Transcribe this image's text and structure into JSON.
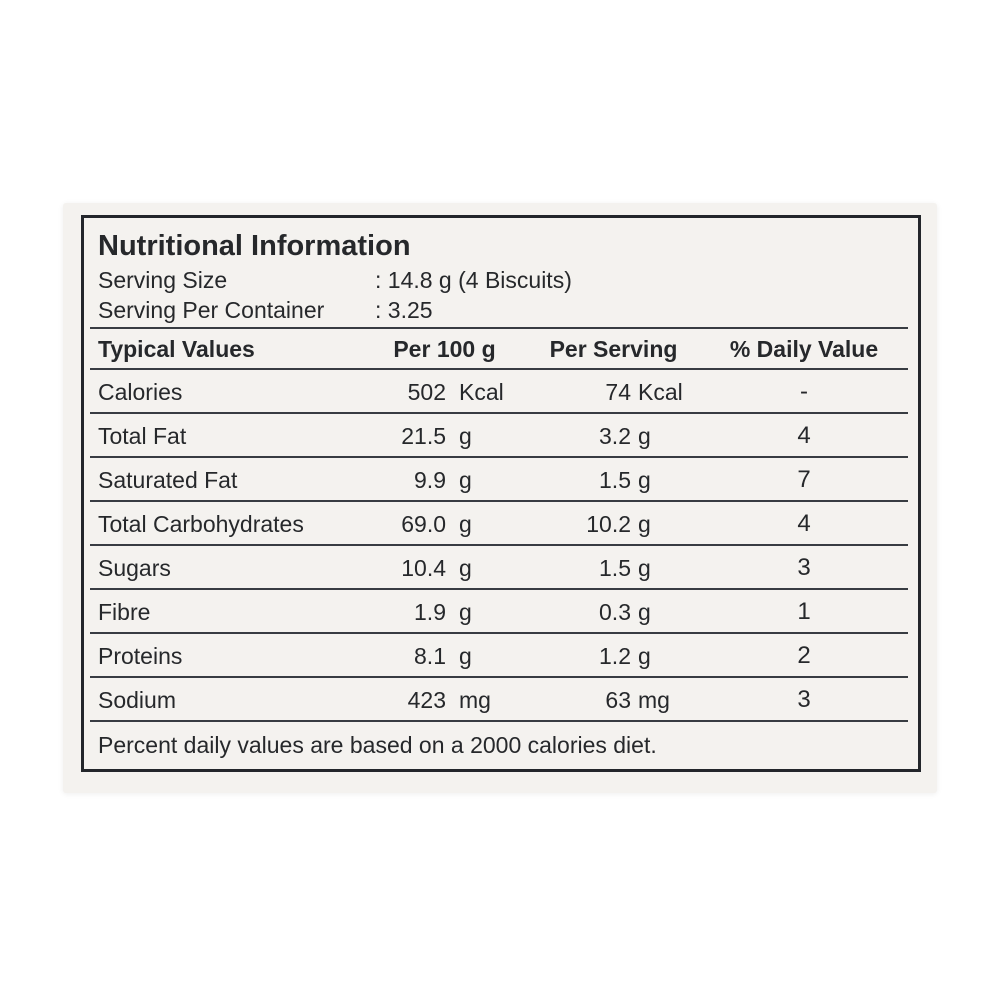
{
  "page": {
    "background": "#ffffff",
    "card_background": "#f4f2ef",
    "border_color": "#23262b",
    "rule_color": "#383c42",
    "text_color": "#26282b"
  },
  "label": {
    "title": "Nutritional Information",
    "serving_rows": [
      {
        "label": "Serving Size",
        "value": ": 14.8 g (4 Biscuits)"
      },
      {
        "label": "Serving Per Container",
        "value": ": 3.25"
      }
    ],
    "columns": [
      "Typical Values",
      "Per 100 g",
      "Per Serving",
      "% Daily Value"
    ],
    "rows": [
      {
        "name": "Calories",
        "per100_num": "502",
        "per100_unit": "Kcal",
        "serving_num": "74",
        "serving_unit": "Kcal",
        "daily": "-"
      },
      {
        "name": "Total Fat",
        "per100_num": "21.5",
        "per100_unit": "g",
        "serving_num": "3.2",
        "serving_unit": "g",
        "daily": "4"
      },
      {
        "name": "Saturated Fat",
        "per100_num": "9.9",
        "per100_unit": "g",
        "serving_num": "1.5",
        "serving_unit": "g",
        "daily": "7"
      },
      {
        "name": "Total Carbohydrates",
        "per100_num": "69.0",
        "per100_unit": "g",
        "serving_num": "10.2",
        "serving_unit": "g",
        "daily": "4"
      },
      {
        "name": "Sugars",
        "per100_num": "10.4",
        "per100_unit": "g",
        "serving_num": "1.5",
        "serving_unit": "g",
        "daily": "3"
      },
      {
        "name": "Fibre",
        "per100_num": "1.9",
        "per100_unit": "g",
        "serving_num": "0.3",
        "serving_unit": "g",
        "daily": "1"
      },
      {
        "name": "Proteins",
        "per100_num": "8.1",
        "per100_unit": "g",
        "serving_num": "1.2",
        "serving_unit": "g",
        "daily": "2"
      },
      {
        "name": "Sodium",
        "per100_num": "423",
        "per100_unit": "mg",
        "serving_num": "63",
        "serving_unit": "mg",
        "daily": "3"
      }
    ],
    "footer": "Percent daily values are based on a 2000 calories diet."
  }
}
